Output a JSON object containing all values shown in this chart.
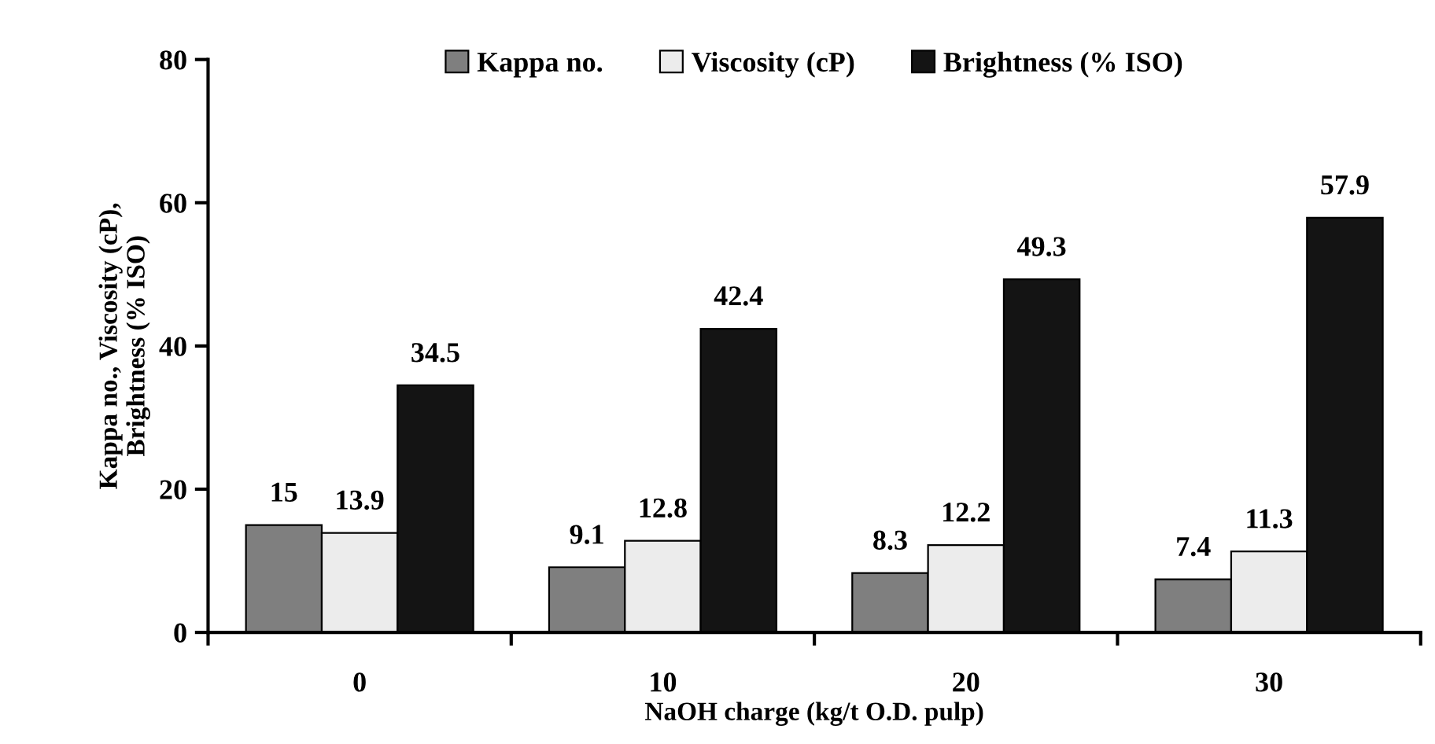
{
  "chart_data": {
    "type": "bar",
    "xlabel": "NaOH charge (kg/t O.D. pulp)",
    "ylabel": "Kappa no., Viscosity (cP),\nBrightness (% ISO)",
    "categories": [
      "0",
      "10",
      "20",
      "30"
    ],
    "series": [
      {
        "name": "Kappa no.",
        "color": "#7f7f7f",
        "values": [
          15,
          9.1,
          8.3,
          7.4
        ]
      },
      {
        "name": "Viscosity (cP)",
        "color": "#ececec",
        "values": [
          13.9,
          12.8,
          12.2,
          11.3
        ]
      },
      {
        "name": "Brightness (% ISO)",
        "color": "#141414",
        "values": [
          34.5,
          42.4,
          49.3,
          57.9
        ]
      }
    ],
    "ylim": [
      0,
      80
    ],
    "yticks": [
      0,
      20,
      40,
      60,
      80
    ],
    "grid": false,
    "legend": "top",
    "data_labels": true
  }
}
